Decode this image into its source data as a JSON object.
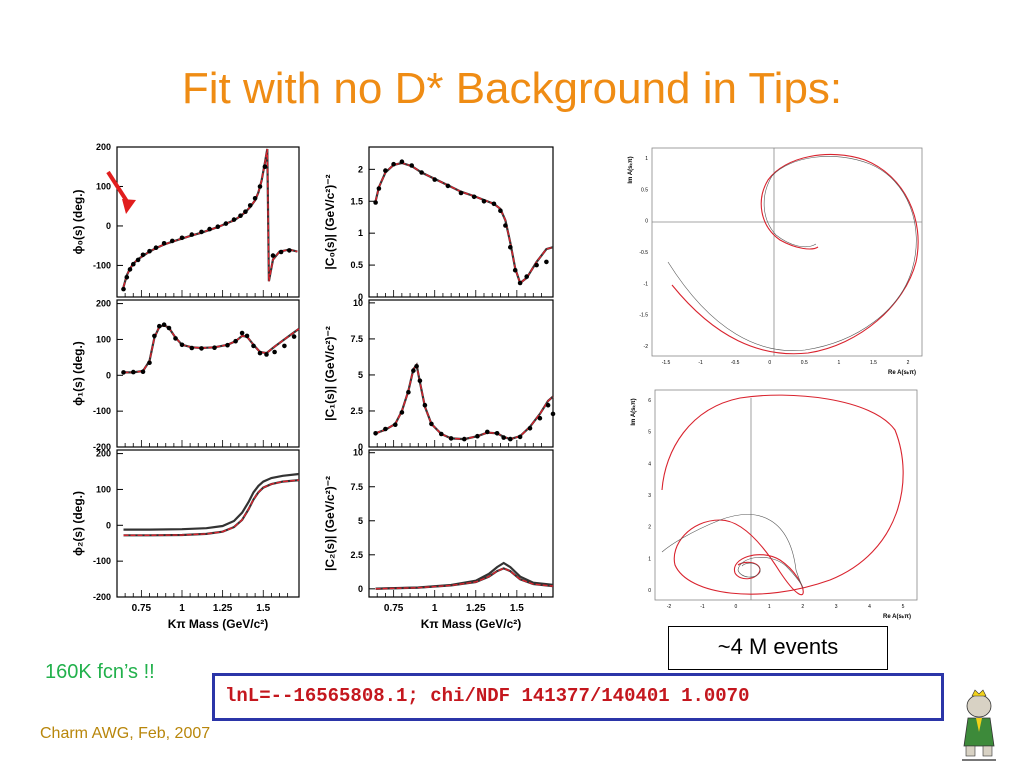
{
  "title": "Fit with no D* Background in Tips:",
  "events_note": "~4 M events",
  "fcn_note": "160K fcn’s !!",
  "likelihood_text": "lnL=--16565808.1; chi/NDF 141377/140401 1.0070",
  "footer": "Charm AWG, Feb, 2007",
  "colors": {
    "title": "#ef8c14",
    "fit_line": "#d9232e",
    "fcn": "#22b14c",
    "box_border": "#2b35a8",
    "lnl_text": "#c4171e"
  },
  "chart_data": [
    {
      "id": "phi0",
      "type": "line",
      "ylabel": "ϕ₀(s)  (deg.)",
      "ylim": [
        -180,
        200
      ],
      "yticks": [
        -100,
        0,
        100,
        200
      ],
      "xlim": [
        0.6,
        1.72
      ],
      "points": [
        [
          0.64,
          -155
        ],
        [
          0.66,
          -125
        ],
        [
          0.68,
          -108
        ],
        [
          0.7,
          -96
        ],
        [
          0.73,
          -84
        ],
        [
          0.76,
          -76
        ],
        [
          0.8,
          -65
        ],
        [
          0.84,
          -56
        ],
        [
          0.89,
          -47
        ],
        [
          0.94,
          -40
        ],
        [
          1.0,
          -32
        ],
        [
          1.06,
          -24
        ],
        [
          1.12,
          -17
        ],
        [
          1.17,
          -10
        ],
        [
          1.22,
          -3
        ],
        [
          1.27,
          6
        ],
        [
          1.32,
          14
        ],
        [
          1.36,
          25
        ],
        [
          1.39,
          35
        ],
        [
          1.42,
          48
        ],
        [
          1.45,
          65
        ],
        [
          1.47,
          85
        ],
        [
          1.49,
          115
        ],
        [
          1.51,
          160
        ],
        [
          1.525,
          195
        ],
        [
          1.535,
          -140
        ],
        [
          1.56,
          -85
        ],
        [
          1.6,
          -65
        ],
        [
          1.66,
          -60
        ],
        [
          1.71,
          -65
        ]
      ],
      "markers": [
        [
          0.64,
          -160
        ],
        [
          0.66,
          -130
        ],
        [
          0.68,
          -110
        ],
        [
          0.7,
          -97
        ],
        [
          0.73,
          -86
        ],
        [
          0.76,
          -73
        ],
        [
          0.8,
          -64
        ],
        [
          0.84,
          -55
        ],
        [
          0.89,
          -44
        ],
        [
          0.94,
          -38
        ],
        [
          1.0,
          -30
        ],
        [
          1.06,
          -22
        ],
        [
          1.12,
          -15
        ],
        [
          1.17,
          -8
        ],
        [
          1.22,
          -2
        ],
        [
          1.27,
          6
        ],
        [
          1.32,
          16
        ],
        [
          1.36,
          26
        ],
        [
          1.39,
          36
        ],
        [
          1.42,
          52
        ],
        [
          1.45,
          70
        ],
        [
          1.48,
          100
        ],
        [
          1.51,
          150
        ],
        [
          1.56,
          -75
        ],
        [
          1.61,
          -66
        ],
        [
          1.66,
          -62
        ]
      ]
    },
    {
      "id": "c0",
      "type": "line",
      "ylabel": "|C₀(s)|  (GeV/c²)⁻²",
      "ylim": [
        0,
        2.35
      ],
      "yticks": [
        0,
        0.5,
        1,
        1.5,
        2
      ],
      "xlim": [
        0.6,
        1.72
      ],
      "points": [
        [
          0.64,
          1.5
        ],
        [
          0.66,
          1.72
        ],
        [
          0.7,
          1.95
        ],
        [
          0.75,
          2.07
        ],
        [
          0.8,
          2.1
        ],
        [
          0.86,
          2.05
        ],
        [
          0.92,
          1.95
        ],
        [
          1.0,
          1.85
        ],
        [
          1.08,
          1.75
        ],
        [
          1.16,
          1.65
        ],
        [
          1.24,
          1.58
        ],
        [
          1.3,
          1.52
        ],
        [
          1.36,
          1.46
        ],
        [
          1.4,
          1.38
        ],
        [
          1.43,
          1.2
        ],
        [
          1.46,
          0.85
        ],
        [
          1.49,
          0.45
        ],
        [
          1.52,
          0.22
        ],
        [
          1.56,
          0.3
        ],
        [
          1.62,
          0.55
        ],
        [
          1.68,
          0.75
        ],
        [
          1.72,
          0.78
        ]
      ],
      "markers": [
        [
          0.64,
          1.48
        ],
        [
          0.66,
          1.7
        ],
        [
          0.7,
          1.98
        ],
        [
          0.75,
          2.08
        ],
        [
          0.8,
          2.12
        ],
        [
          0.86,
          2.06
        ],
        [
          0.92,
          1.95
        ],
        [
          1.0,
          1.84
        ],
        [
          1.08,
          1.74
        ],
        [
          1.16,
          1.63
        ],
        [
          1.24,
          1.57
        ],
        [
          1.3,
          1.5
        ],
        [
          1.36,
          1.46
        ],
        [
          1.4,
          1.35
        ],
        [
          1.43,
          1.12
        ],
        [
          1.46,
          0.78
        ],
        [
          1.49,
          0.42
        ],
        [
          1.52,
          0.22
        ],
        [
          1.56,
          0.32
        ],
        [
          1.62,
          0.5
        ],
        [
          1.68,
          0.55
        ]
      ]
    },
    {
      "id": "phi1",
      "type": "line",
      "ylabel": "ϕ₁(s)  (deg.)",
      "ylim": [
        -200,
        210
      ],
      "yticks": [
        -200,
        -100,
        0,
        100,
        200
      ],
      "xlim": [
        0.6,
        1.72
      ],
      "points": [
        [
          0.64,
          8
        ],
        [
          0.7,
          8
        ],
        [
          0.76,
          12
        ],
        [
          0.8,
          40
        ],
        [
          0.83,
          105
        ],
        [
          0.86,
          135
        ],
        [
          0.89,
          140
        ],
        [
          0.92,
          132
        ],
        [
          0.96,
          105
        ],
        [
          1.0,
          85
        ],
        [
          1.06,
          78
        ],
        [
          1.12,
          76
        ],
        [
          1.2,
          78
        ],
        [
          1.28,
          85
        ],
        [
          1.33,
          95
        ],
        [
          1.37,
          110
        ],
        [
          1.4,
          108
        ],
        [
          1.44,
          85
        ],
        [
          1.48,
          65
        ],
        [
          1.52,
          62
        ],
        [
          1.57,
          80
        ],
        [
          1.63,
          100
        ],
        [
          1.69,
          120
        ],
        [
          1.72,
          130
        ]
      ],
      "markers": [
        [
          0.64,
          8
        ],
        [
          0.7,
          9
        ],
        [
          0.76,
          10
        ],
        [
          0.8,
          35
        ],
        [
          0.83,
          110
        ],
        [
          0.86,
          137
        ],
        [
          0.89,
          141
        ],
        [
          0.92,
          132
        ],
        [
          0.96,
          103
        ],
        [
          1.0,
          85
        ],
        [
          1.06,
          76
        ],
        [
          1.12,
          75
        ],
        [
          1.2,
          77
        ],
        [
          1.28,
          84
        ],
        [
          1.33,
          95
        ],
        [
          1.37,
          118
        ],
        [
          1.4,
          110
        ],
        [
          1.44,
          82
        ],
        [
          1.48,
          62
        ],
        [
          1.52,
          58
        ],
        [
          1.57,
          65
        ],
        [
          1.63,
          82
        ],
        [
          1.69,
          108
        ]
      ]
    },
    {
      "id": "c1",
      "type": "line",
      "ylabel": "|C₁(s)|  (GeV/c²)⁻²",
      "ylim": [
        0,
        10.2
      ],
      "yticks": [
        0,
        2.5,
        5,
        7.5,
        10
      ],
      "xlim": [
        0.6,
        1.72
      ],
      "points": [
        [
          0.64,
          0.95
        ],
        [
          0.7,
          1.2
        ],
        [
          0.76,
          1.6
        ],
        [
          0.8,
          2.5
        ],
        [
          0.84,
          3.9
        ],
        [
          0.87,
          5.4
        ],
        [
          0.89,
          5.7
        ],
        [
          0.91,
          4.5
        ],
        [
          0.94,
          2.8
        ],
        [
          0.98,
          1.6
        ],
        [
          1.04,
          0.9
        ],
        [
          1.1,
          0.6
        ],
        [
          1.18,
          0.55
        ],
        [
          1.26,
          0.75
        ],
        [
          1.32,
          1.0
        ],
        [
          1.38,
          0.95
        ],
        [
          1.42,
          0.7
        ],
        [
          1.46,
          0.55
        ],
        [
          1.52,
          0.75
        ],
        [
          1.58,
          1.4
        ],
        [
          1.64,
          2.3
        ],
        [
          1.69,
          3.2
        ],
        [
          1.72,
          3.5
        ]
      ],
      "markers": [
        [
          0.64,
          0.95
        ],
        [
          0.7,
          1.25
        ],
        [
          0.76,
          1.55
        ],
        [
          0.8,
          2.4
        ],
        [
          0.84,
          3.8
        ],
        [
          0.87,
          5.3
        ],
        [
          0.89,
          5.6
        ],
        [
          0.91,
          4.6
        ],
        [
          0.94,
          2.9
        ],
        [
          0.98,
          1.6
        ],
        [
          1.04,
          0.9
        ],
        [
          1.1,
          0.6
        ],
        [
          1.18,
          0.55
        ],
        [
          1.26,
          0.75
        ],
        [
          1.32,
          1.05
        ],
        [
          1.38,
          0.95
        ],
        [
          1.42,
          0.65
        ],
        [
          1.46,
          0.55
        ],
        [
          1.52,
          0.7
        ],
        [
          1.58,
          1.3
        ],
        [
          1.64,
          2.0
        ],
        [
          1.69,
          2.9
        ],
        [
          1.72,
          2.3
        ]
      ]
    },
    {
      "id": "phi2",
      "type": "line",
      "ylabel": "ϕ₂(s)  (deg.)",
      "ylim": [
        -200,
        210
      ],
      "yticks": [
        -200,
        -100,
        0,
        100,
        200
      ],
      "xlim": [
        0.6,
        1.72
      ],
      "xlabel": "Kπ Mass (GeV/c²)",
      "xticks": [
        0.75,
        1,
        1.25,
        1.5
      ],
      "points": [
        [
          0.64,
          -28
        ],
        [
          0.8,
          -28
        ],
        [
          1.0,
          -27
        ],
        [
          1.15,
          -24
        ],
        [
          1.25,
          -18
        ],
        [
          1.32,
          -5
        ],
        [
          1.37,
          15
        ],
        [
          1.41,
          45
        ],
        [
          1.44,
          72
        ],
        [
          1.47,
          92
        ],
        [
          1.5,
          105
        ],
        [
          1.55,
          115
        ],
        [
          1.62,
          122
        ],
        [
          1.72,
          126
        ]
      ],
      "points2": [
        [
          0.64,
          -12
        ],
        [
          0.8,
          -12
        ],
        [
          1.0,
          -11
        ],
        [
          1.15,
          -8
        ],
        [
          1.25,
          -2
        ],
        [
          1.32,
          12
        ],
        [
          1.37,
          35
        ],
        [
          1.41,
          65
        ],
        [
          1.44,
          92
        ],
        [
          1.47,
          110
        ],
        [
          1.5,
          122
        ],
        [
          1.55,
          132
        ],
        [
          1.62,
          138
        ],
        [
          1.72,
          143
        ]
      ]
    },
    {
      "id": "c2",
      "type": "line",
      "ylabel": "|C₂(s)|  (GeV/c²)⁻²",
      "ylim": [
        -0.6,
        10.2
      ],
      "yticks": [
        0,
        2.5,
        5,
        7.5,
        10
      ],
      "xlim": [
        0.6,
        1.72
      ],
      "xlabel": "Kπ Mass (GeV/c²)",
      "xticks": [
        0.75,
        1,
        1.25,
        1.5
      ],
      "points": [
        [
          0.64,
          0.0
        ],
        [
          0.9,
          0.08
        ],
        [
          1.1,
          0.25
        ],
        [
          1.25,
          0.5
        ],
        [
          1.33,
          0.9
        ],
        [
          1.38,
          1.3
        ],
        [
          1.42,
          1.5
        ],
        [
          1.46,
          1.3
        ],
        [
          1.52,
          0.7
        ],
        [
          1.6,
          0.35
        ],
        [
          1.72,
          0.2
        ]
      ],
      "points2": [
        [
          0.64,
          0.02
        ],
        [
          0.9,
          0.1
        ],
        [
          1.1,
          0.28
        ],
        [
          1.25,
          0.6
        ],
        [
          1.33,
          1.1
        ],
        [
          1.38,
          1.6
        ],
        [
          1.42,
          1.9
        ],
        [
          1.46,
          1.6
        ],
        [
          1.52,
          0.9
        ],
        [
          1.6,
          0.45
        ],
        [
          1.72,
          0.3
        ]
      ]
    },
    {
      "id": "argand_top",
      "type": "line",
      "xlabel": "Re A(sₖπ)",
      "ylabel": "Im A(sₖπ)",
      "xlim": [
        -1.8,
        2.1
      ],
      "ylim": [
        -2.2,
        1.4
      ],
      "yticks": [
        "1",
        "0.5",
        "0",
        "-0.5",
        "-1",
        "-1.5",
        "-2"
      ],
      "xticks": [
        "-1.5",
        "-1",
        "-0.5",
        "0",
        "0.5",
        "1",
        "1.5",
        "2"
      ]
    },
    {
      "id": "argand_bottom",
      "type": "line",
      "xlabel": "Re A(sₖπ)",
      "ylabel": "Im A(sₖπ)",
      "xlim": [
        -2.2,
        5.5
      ],
      "ylim": [
        -0.3,
        6.3
      ],
      "yticks": [
        "6",
        "5",
        "4",
        "3",
        "2",
        "1",
        "0"
      ],
      "xticks": [
        "-2",
        "-1",
        "0",
        "1",
        "2",
        "3",
        "4",
        "5"
      ]
    }
  ]
}
